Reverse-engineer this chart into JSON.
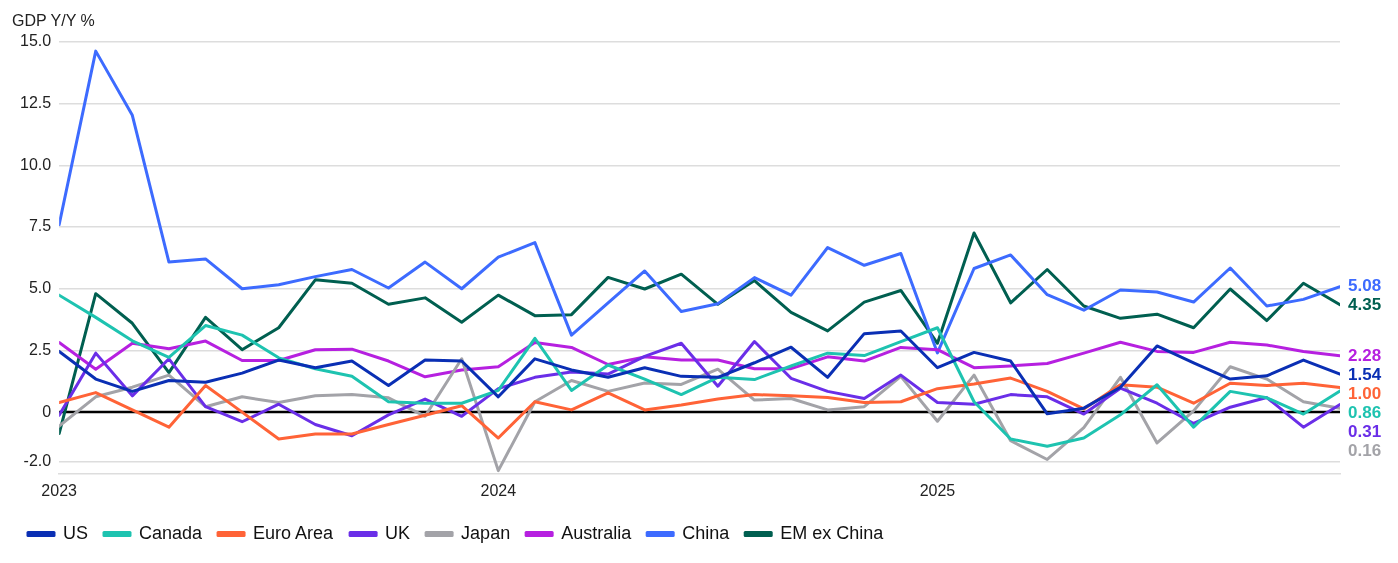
{
  "chart_data": {
    "type": "line",
    "ylabel": "GDP Y/Y %",
    "x": [
      "2023-01",
      "2023-02",
      "2023-03",
      "2023-04",
      "2023-05",
      "2023-06",
      "2023-07",
      "2023-08",
      "2023-09",
      "2023-10",
      "2023-11",
      "2023-12",
      "2024-01",
      "2024-02",
      "2024-03",
      "2024-04",
      "2024-05",
      "2024-06",
      "2024-07",
      "2024-08",
      "2024-09",
      "2024-10",
      "2024-11",
      "2024-12",
      "2025-01",
      "2025-02",
      "2025-03",
      "2025-04",
      "2025-05",
      "2025-06",
      "2025-07",
      "2025-08",
      "2025-09",
      "2025-10",
      "2025-11",
      "2025-12"
    ],
    "xlim": [
      "2023-01",
      "2025-12"
    ],
    "xticks": [
      {
        "value": "2023-01",
        "label": "2023"
      },
      {
        "value": "2024-01",
        "label": "2024"
      },
      {
        "value": "2025-01",
        "label": "2025"
      }
    ],
    "ylim": [
      -2.5,
      15
    ],
    "yticks": [
      {
        "value": -2,
        "label": "-2.0"
      },
      0,
      2.5,
      {
        "value": 5,
        "label": "5.0"
      },
      7.5,
      {
        "value": 10,
        "label": "10.0"
      },
      12.5,
      {
        "value": 15,
        "label": "15.0"
      }
    ],
    "grid": "y",
    "legend": "bottom left",
    "line_style": "solid",
    "ref_lines": [
      {
        "axis": "y",
        "value": 0,
        "color": "#000000"
      }
    ],
    "series": [
      {
        "name": "US",
        "color": "#0a2fb4",
        "values": [
          2.46,
          1.34,
          0.84,
          1.28,
          1.21,
          1.58,
          2.11,
          1.8,
          2.07,
          1.08,
          2.11,
          2.07,
          0.62,
          2.16,
          1.71,
          1.41,
          1.8,
          1.45,
          1.41,
          2.0,
          2.63,
          1.41,
          3.18,
          3.29,
          1.8,
          2.42,
          2.07,
          -0.07,
          0.16,
          1.01,
          2.68,
          2.0,
          1.34,
          1.47,
          2.11,
          1.54
        ],
        "value_labels": [
          null,
          null,
          null,
          null,
          null,
          null,
          null,
          null,
          null,
          null,
          null,
          null,
          null,
          null,
          null,
          null,
          null,
          null,
          null,
          null,
          null,
          null,
          null,
          null,
          null,
          null,
          null,
          null,
          null,
          null,
          null,
          null,
          null,
          null,
          null,
          "1.54"
        ]
      },
      {
        "name": "Canada",
        "color": "#1ec3b0",
        "values": [
          4.74,
          3.84,
          2.89,
          2.22,
          3.51,
          3.12,
          2.2,
          1.76,
          1.45,
          0.42,
          0.36,
          0.36,
          0.88,
          2.99,
          0.88,
          1.91,
          1.34,
          0.71,
          1.41,
          1.32,
          1.87,
          2.39,
          2.29,
          2.86,
          3.42,
          0.42,
          -1.09,
          -1.38,
          -1.05,
          -0.11,
          1.11,
          -0.61,
          0.84,
          0.58,
          -0.08,
          0.86
        ],
        "value_labels": [
          null,
          null,
          null,
          null,
          null,
          null,
          null,
          null,
          null,
          null,
          null,
          null,
          null,
          null,
          null,
          null,
          null,
          null,
          null,
          null,
          null,
          null,
          null,
          null,
          null,
          null,
          null,
          null,
          null,
          null,
          null,
          null,
          null,
          null,
          null,
          "0.86"
        ]
      },
      {
        "name": "Euro Area",
        "color": "#ff6337",
        "values": [
          0.39,
          0.79,
          0.09,
          -0.61,
          1.08,
          0,
          -1.09,
          -0.89,
          -0.89,
          -0.5,
          -0.13,
          0.26,
          -1.05,
          0.42,
          0.09,
          0.78,
          0.09,
          0.29,
          0.53,
          0.71,
          0.66,
          0.59,
          0.39,
          0.42,
          0.95,
          1.14,
          1.38,
          0.84,
          0.13,
          1.11,
          1.01,
          0.36,
          1.17,
          1.08,
          1.17,
          1.0
        ],
        "value_labels": [
          null,
          null,
          null,
          null,
          null,
          null,
          null,
          null,
          null,
          null,
          null,
          null,
          null,
          null,
          null,
          null,
          null,
          null,
          null,
          null,
          null,
          null,
          null,
          null,
          null,
          null,
          null,
          null,
          null,
          null,
          null,
          null,
          null,
          null,
          null,
          "1.00"
        ]
      },
      {
        "name": "UK",
        "color": "#6a2ee8",
        "values": [
          -0.13,
          2.39,
          0.66,
          2.16,
          0.22,
          -0.39,
          0.32,
          -0.5,
          -0.96,
          -0.11,
          0.53,
          -0.17,
          0.95,
          1.41,
          1.63,
          1.54,
          2.26,
          2.79,
          1.05,
          2.86,
          1.37,
          0.84,
          0.55,
          1.5,
          0.39,
          0.32,
          0.71,
          0.62,
          -0.08,
          0.97,
          0.36,
          -0.46,
          0.2,
          0.59,
          -0.61,
          0.31
        ],
        "value_labels": [
          null,
          null,
          null,
          null,
          null,
          null,
          null,
          null,
          null,
          null,
          null,
          null,
          null,
          null,
          null,
          null,
          null,
          null,
          null,
          null,
          null,
          null,
          null,
          null,
          null,
          null,
          null,
          null,
          null,
          null,
          null,
          null,
          null,
          null,
          null,
          "0.31"
        ]
      },
      {
        "name": "Japan",
        "color": "#a3a3a8",
        "values": [
          -0.57,
          0.62,
          1.01,
          1.5,
          0.22,
          0.62,
          0.39,
          0.66,
          0.71,
          0.58,
          -0.17,
          2.16,
          -2.37,
          0.42,
          1.28,
          0.84,
          1.18,
          1.12,
          1.74,
          0.49,
          0.55,
          0.09,
          0.22,
          1.45,
          -0.37,
          1.5,
          -1.16,
          -1.92,
          -0.63,
          1.41,
          -1.25,
          0.05,
          1.84,
          1.34,
          0.42,
          0.16
        ],
        "value_labels": [
          null,
          null,
          null,
          null,
          null,
          null,
          null,
          null,
          null,
          null,
          null,
          null,
          null,
          null,
          null,
          null,
          null,
          null,
          null,
          null,
          null,
          null,
          null,
          null,
          null,
          null,
          null,
          null,
          null,
          null,
          null,
          null,
          null,
          null,
          null,
          "0.16"
        ]
      },
      {
        "name": "Australia",
        "color": "#b620e0",
        "values": [
          2.82,
          1.74,
          2.79,
          2.57,
          2.88,
          2.09,
          2.09,
          2.53,
          2.55,
          2.07,
          1.43,
          1.71,
          1.84,
          2.82,
          2.62,
          1.93,
          2.24,
          2.11,
          2.11,
          1.76,
          1.76,
          2.24,
          2.07,
          2.62,
          2.53,
          1.8,
          1.87,
          1.97,
          2.39,
          2.83,
          2.46,
          2.42,
          2.83,
          2.72,
          2.46,
          2.28
        ],
        "value_labels": [
          null,
          null,
          null,
          null,
          null,
          null,
          null,
          null,
          null,
          null,
          null,
          null,
          null,
          null,
          null,
          null,
          null,
          null,
          null,
          null,
          null,
          null,
          null,
          null,
          null,
          null,
          null,
          null,
          null,
          null,
          null,
          null,
          null,
          null,
          null,
          "2.28"
        ]
      },
      {
        "name": "China",
        "color": "#3d6bff",
        "values": [
          7.6,
          14.63,
          12.03,
          6.08,
          6.21,
          5.0,
          5.16,
          5.49,
          5.78,
          5.03,
          6.08,
          5.0,
          6.28,
          6.87,
          3.12,
          4.43,
          5.72,
          4.08,
          4.39,
          5.45,
          4.74,
          6.67,
          5.95,
          6.43,
          2.4,
          5.82,
          6.37,
          4.76,
          4.13,
          4.95,
          4.87,
          4.46,
          5.84,
          4.3,
          4.57,
          5.08
        ],
        "value_labels": [
          null,
          null,
          null,
          null,
          null,
          null,
          null,
          null,
          null,
          null,
          null,
          null,
          null,
          null,
          null,
          null,
          null,
          null,
          null,
          null,
          null,
          null,
          null,
          null,
          null,
          null,
          null,
          null,
          null,
          null,
          null,
          null,
          null,
          null,
          null,
          "5.08"
        ]
      },
      {
        "name": "EM ex China",
        "color": "#005f50",
        "values": [
          -0.87,
          4.8,
          3.6,
          1.6,
          3.84,
          2.53,
          3.42,
          5.36,
          5.22,
          4.37,
          4.63,
          3.64,
          4.74,
          3.91,
          3.95,
          5.46,
          4.99,
          5.59,
          4.37,
          5.33,
          4.04,
          3.29,
          4.46,
          4.93,
          2.79,
          7.26,
          4.43,
          5.78,
          4.3,
          3.8,
          3.97,
          3.42,
          4.99,
          3.71,
          5.22,
          4.35
        ],
        "value_labels": [
          null,
          null,
          null,
          null,
          null,
          null,
          null,
          null,
          null,
          null,
          null,
          null,
          null,
          null,
          null,
          null,
          null,
          null,
          null,
          null,
          null,
          null,
          null,
          null,
          null,
          null,
          null,
          null,
          null,
          null,
          null,
          null,
          null,
          null,
          null,
          "4.35"
        ]
      }
    ]
  }
}
